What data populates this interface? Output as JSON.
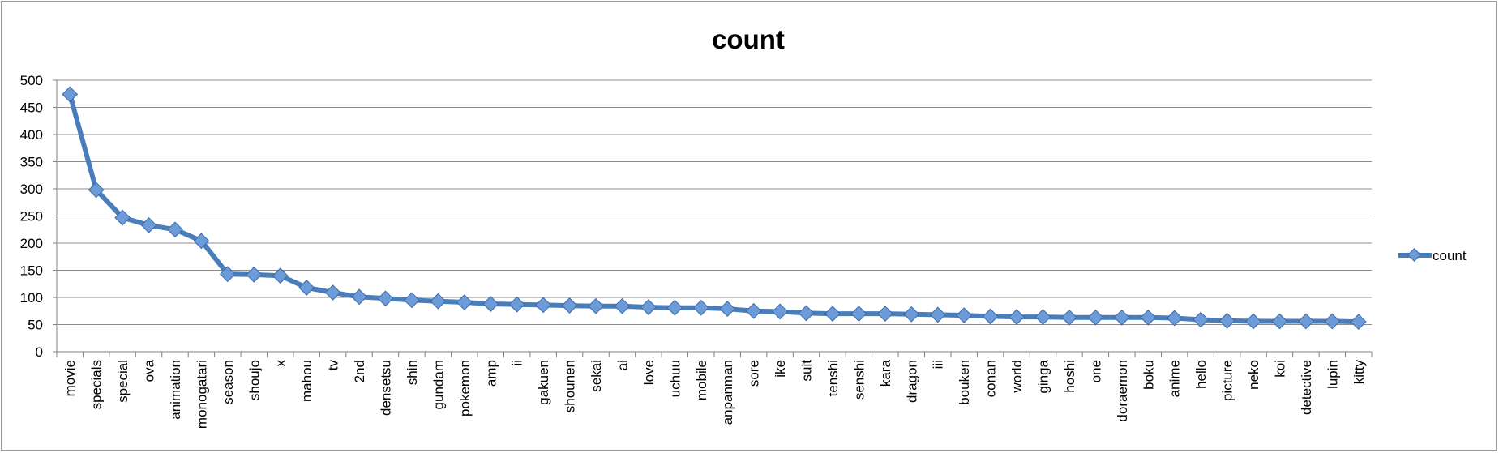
{
  "chart_data": {
    "type": "line",
    "title": "count",
    "xlabel": "",
    "ylabel": "",
    "ylim": [
      0,
      500
    ],
    "y_ticks": [
      0,
      50,
      100,
      150,
      200,
      250,
      300,
      350,
      400,
      450,
      500
    ],
    "grid": true,
    "legend_position": "right",
    "series_color": "#4a7ebb",
    "marker_color": "#6b9bd8",
    "categories": [
      "movie",
      "specials",
      "special",
      "ova",
      "animation",
      "monogatari",
      "season",
      "shoujo",
      "x",
      "mahou",
      "tv",
      "2nd",
      "densetsu",
      "shin",
      "gundam",
      "pokemon",
      "amp",
      "ii",
      "gakuen",
      "shounen",
      "sekai",
      "ai",
      "love",
      "uchuu",
      "mobile",
      "anpanman",
      "sore",
      "ike",
      "suit",
      "tenshi",
      "senshi",
      "kara",
      "dragon",
      "iii",
      "bouken",
      "conan",
      "world",
      "ginga",
      "hoshi",
      "one",
      "doraemon",
      "boku",
      "anime",
      "hello",
      "picture",
      "neko",
      "koi",
      "detective",
      "lupin",
      "kitty"
    ],
    "series": [
      {
        "name": "count",
        "values": [
          474,
          298,
          247,
          233,
          225,
          204,
          143,
          142,
          140,
          118,
          109,
          101,
          98,
          95,
          93,
          91,
          88,
          87,
          86,
          85,
          84,
          84,
          82,
          81,
          81,
          79,
          75,
          74,
          71,
          70,
          70,
          70,
          69,
          68,
          67,
          65,
          64,
          64,
          63,
          63,
          63,
          63,
          62,
          59,
          57,
          56,
          56,
          56,
          56,
          55
        ]
      }
    ]
  }
}
